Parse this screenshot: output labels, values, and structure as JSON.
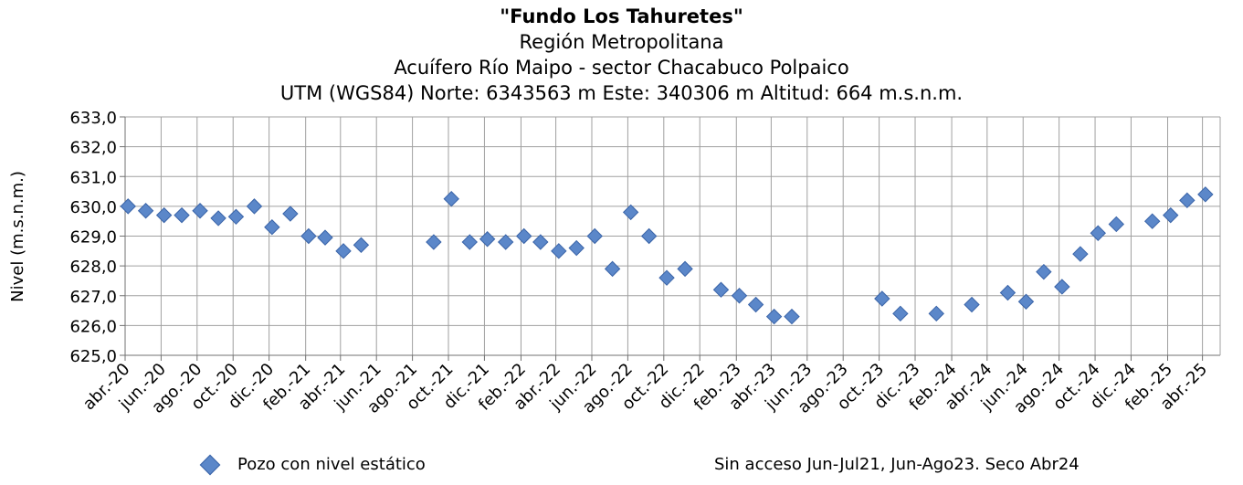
{
  "chart_data": {
    "type": "scatter",
    "title": "\"Fundo Los Tahuretes\"",
    "subtitle_lines": [
      "Región Metropolitana",
      "Acuífero Río Maipo - sector Chacabuco Polpaico",
      "UTM (WGS84) Norte: 6343563 m Este: 340306 m   Altitud: 664 m.s.n.m."
    ],
    "ylabel": "Nivel (m.s.n.m.)",
    "xlabel": "",
    "ylim": [
      625,
      633
    ],
    "y_ticks": [
      "625,0",
      "626,0",
      "627,0",
      "628,0",
      "629,0",
      "630,0",
      "631,0",
      "632,0",
      "633,0"
    ],
    "x_range": [
      "2020-04",
      "2025-05"
    ],
    "x_ticks": [
      {
        "date": "2020-04",
        "label": "abr.-20"
      },
      {
        "date": "2020-06",
        "label": "jun.-20"
      },
      {
        "date": "2020-08",
        "label": "ago.-20"
      },
      {
        "date": "2020-10",
        "label": "oct.-20"
      },
      {
        "date": "2020-12",
        "label": "dic.-20"
      },
      {
        "date": "2021-02",
        "label": "feb.-21"
      },
      {
        "date": "2021-04",
        "label": "abr.-21"
      },
      {
        "date": "2021-06",
        "label": "jun.-21"
      },
      {
        "date": "2021-08",
        "label": "ago.-21"
      },
      {
        "date": "2021-10",
        "label": "oct.-21"
      },
      {
        "date": "2021-12",
        "label": "dic.-21"
      },
      {
        "date": "2022-02",
        "label": "feb.-22"
      },
      {
        "date": "2022-04",
        "label": "abr.-22"
      },
      {
        "date": "2022-06",
        "label": "jun.-22"
      },
      {
        "date": "2022-08",
        "label": "ago.-22"
      },
      {
        "date": "2022-10",
        "label": "oct.-22"
      },
      {
        "date": "2022-12",
        "label": "dic.-22"
      },
      {
        "date": "2023-02",
        "label": "feb.-23"
      },
      {
        "date": "2023-04",
        "label": "abr.-23"
      },
      {
        "date": "2023-06",
        "label": "jun.-23"
      },
      {
        "date": "2023-08",
        "label": "ago.-23"
      },
      {
        "date": "2023-10",
        "label": "oct.-23"
      },
      {
        "date": "2023-12",
        "label": "dic.-23"
      },
      {
        "date": "2024-02",
        "label": "feb.-24"
      },
      {
        "date": "2024-04",
        "label": "abr.-24"
      },
      {
        "date": "2024-06",
        "label": "jun.-24"
      },
      {
        "date": "2024-08",
        "label": "ago.-24"
      },
      {
        "date": "2024-10",
        "label": "oct.-24"
      },
      {
        "date": "2024-12",
        "label": "dic.-24"
      },
      {
        "date": "2025-02",
        "label": "feb.-25"
      },
      {
        "date": "2025-04",
        "label": "abr.-25"
      }
    ],
    "grid": true,
    "legend_position": "bottom-left",
    "series": [
      {
        "name": "Pozo con nivel estático",
        "color": "#5b87c9",
        "marker": "diamond",
        "points": [
          {
            "x": "2020-04-06",
            "y": 630.0
          },
          {
            "x": "2020-05-06",
            "y": 629.85
          },
          {
            "x": "2020-06-06",
            "y": 629.7
          },
          {
            "x": "2020-07-06",
            "y": 629.7
          },
          {
            "x": "2020-08-06",
            "y": 629.85
          },
          {
            "x": "2020-09-06",
            "y": 629.6
          },
          {
            "x": "2020-10-06",
            "y": 629.65
          },
          {
            "x": "2020-11-06",
            "y": 630.0
          },
          {
            "x": "2020-12-06",
            "y": 629.3
          },
          {
            "x": "2021-01-06",
            "y": 629.75
          },
          {
            "x": "2021-02-06",
            "y": 629.0
          },
          {
            "x": "2021-03-06",
            "y": 628.95
          },
          {
            "x": "2021-04-06",
            "y": 628.5
          },
          {
            "x": "2021-05-06",
            "y": 628.7
          },
          {
            "x": "2021-09-06",
            "y": 628.8
          },
          {
            "x": "2021-10-06",
            "y": 630.25
          },
          {
            "x": "2021-11-06",
            "y": 628.8
          },
          {
            "x": "2021-12-06",
            "y": 628.9
          },
          {
            "x": "2022-01-06",
            "y": 628.8
          },
          {
            "x": "2022-02-06",
            "y": 629.0
          },
          {
            "x": "2022-03-06",
            "y": 628.8
          },
          {
            "x": "2022-04-06",
            "y": 628.5
          },
          {
            "x": "2022-05-06",
            "y": 628.6
          },
          {
            "x": "2022-06-06",
            "y": 629.0
          },
          {
            "x": "2022-07-06",
            "y": 627.9
          },
          {
            "x": "2022-08-06",
            "y": 629.8
          },
          {
            "x": "2022-09-06",
            "y": 629.0
          },
          {
            "x": "2022-10-06",
            "y": 627.6
          },
          {
            "x": "2022-11-06",
            "y": 627.9
          },
          {
            "x": "2023-01-06",
            "y": 627.2
          },
          {
            "x": "2023-02-06",
            "y": 627.0
          },
          {
            "x": "2023-03-06",
            "y": 626.7
          },
          {
            "x": "2023-04-06",
            "y": 626.3
          },
          {
            "x": "2023-05-06",
            "y": 626.3
          },
          {
            "x": "2023-10-06",
            "y": 626.9
          },
          {
            "x": "2023-11-06",
            "y": 626.4
          },
          {
            "x": "2024-01-06",
            "y": 626.4
          },
          {
            "x": "2024-03-06",
            "y": 626.7
          },
          {
            "x": "2024-05-06",
            "y": 627.1
          },
          {
            "x": "2024-06-06",
            "y": 626.8
          },
          {
            "x": "2024-07-06",
            "y": 627.8
          },
          {
            "x": "2024-08-06",
            "y": 627.3
          },
          {
            "x": "2024-09-06",
            "y": 628.4
          },
          {
            "x": "2024-10-06",
            "y": 629.1
          },
          {
            "x": "2024-11-06",
            "y": 629.4
          },
          {
            "x": "2025-01-06",
            "y": 629.5
          },
          {
            "x": "2025-02-06",
            "y": 629.7
          },
          {
            "x": "2025-03-06",
            "y": 630.2
          },
          {
            "x": "2025-04-06",
            "y": 630.4
          }
        ]
      }
    ],
    "note": "Sin acceso Jun-Jul21, Jun-Ago23. Seco Abr24"
  }
}
